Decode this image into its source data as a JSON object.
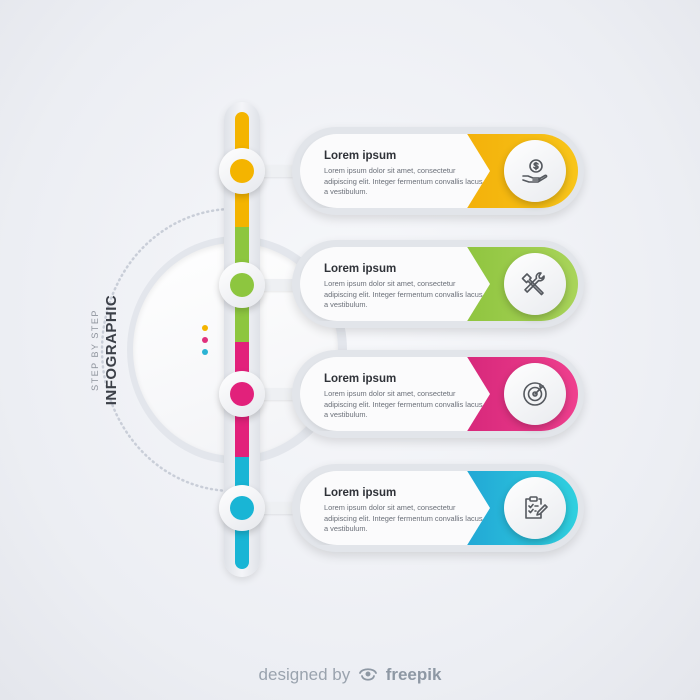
{
  "badge": {
    "subtitle": "STEP BY STEP",
    "title": "INFOGRAPHIC",
    "dot_colors": [
      "#f4b400",
      "#e0307c",
      "#2bb3d4",
      "#8fbf2a"
    ]
  },
  "colors": {
    "step1": "#f4b400",
    "step2": "#8dc63f",
    "step3": "#e2217b",
    "step4": "#19b5d5"
  },
  "steps": [
    {
      "title": "Lorem ipsum",
      "body": "Lorem ipsum dolor sit amet, consectetur adipiscing elit. Integer fermentum convallis lacus a vestibulum.",
      "icon": "money-hand-icon"
    },
    {
      "title": "Lorem ipsum",
      "body": "Lorem ipsum dolor sit amet, consectetur adipiscing elit. Integer fermentum convallis lacus a vestibulum.",
      "icon": "tools-icon"
    },
    {
      "title": "Lorem ipsum",
      "body": "Lorem ipsum dolor sit amet, consectetur adipiscing elit. Integer fermentum convallis lacus a vestibulum.",
      "icon": "target-icon"
    },
    {
      "title": "Lorem ipsum",
      "body": "Lorem ipsum dolor sit amet, consectetur adipiscing elit. Integer fermentum convallis lacus a vestibulum.",
      "icon": "checklist-icon"
    }
  ],
  "footer": {
    "prefix": "designed by",
    "brand": "freepik",
    "icon": "freepik-logo-icon"
  }
}
